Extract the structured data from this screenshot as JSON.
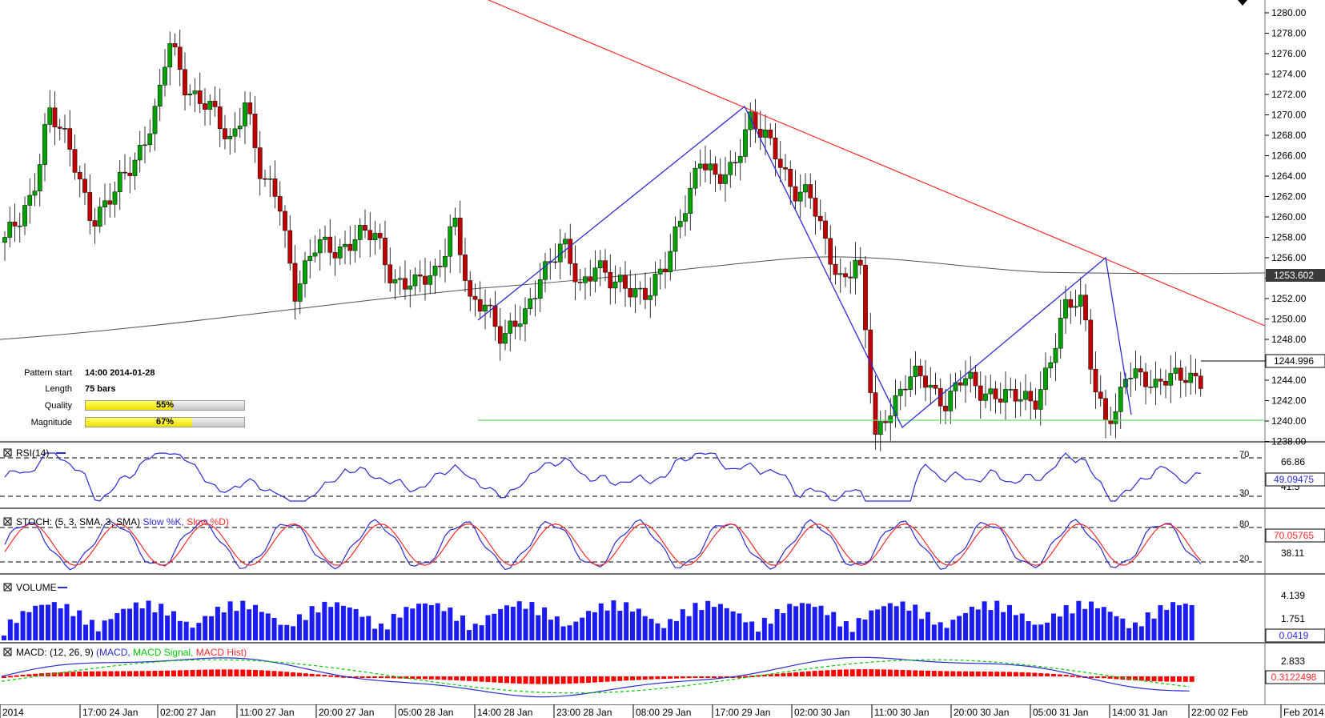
{
  "price_axis": {
    "labels": [
      "1280.00",
      "1278.00",
      "1276.00",
      "1274.00",
      "1272.00",
      "1270.00",
      "1268.00",
      "1266.00",
      "1264.00",
      "1262.00",
      "1260.00",
      "1258.00",
      "1256.00",
      "1254.00",
      "1252.00",
      "1250.00",
      "1248.00",
      "1246.00",
      "1244.00",
      "1242.00",
      "1240.00",
      "1238.00"
    ],
    "current_price": "1244.996",
    "ma_value": "1253.602"
  },
  "time_axis": {
    "labels": [
      "2014",
      "17:00 24 Jan",
      "02:00 27 Jan",
      "11:00 27 Jan",
      "20:00 27 Jan",
      "05:00 28 Jan",
      "14:00 28 Jan",
      "23:00 28 Jan",
      "08:00 29 Jan",
      "17:00 29 Jan",
      "02:00 30 Jan",
      "11:00 30 Jan",
      "20:00 30 Jan",
      "05:00 31 Jan",
      "14:00 31 Jan",
      "22:00 02 Feb",
      "Feb 2014"
    ]
  },
  "pattern_info": {
    "start_label": "Pattern start",
    "start_value": "14:00 2014-01-28",
    "length_label": "Length",
    "length_value": "75 bars",
    "quality_label": "Quality",
    "quality_value": "55%",
    "quality_fraction": 0.55,
    "magnitude_label": "Magnitude",
    "magnitude_value": "67%",
    "magnitude_fraction": 0.67
  },
  "rsi": {
    "title_prefix": "RSI(14)",
    "levels": [
      "70",
      "30"
    ],
    "scale_label": "66.86",
    "value": "49.09475",
    "lower_label": "41.5"
  },
  "stoch": {
    "title_prefix": "STOCH: (5, 3, SMA, 3, SMA)",
    "k_label": "Slow %K,",
    "d_label": "Slow %D)",
    "levels": [
      "80",
      "20"
    ],
    "scale_label": "38.11",
    "value": "70.05765"
  },
  "volume": {
    "title": "VOLUME",
    "scale_top": "4.139",
    "scale_mid": "1.751",
    "value": "0.0419"
  },
  "macd": {
    "title_prefix": "MACD: (12, 26, 9)",
    "macd_label": "(MACD,",
    "signal_label": "MACD Signal,",
    "hist_label": "MACD Hist)",
    "scale_top": "2.833",
    "value": "0.3122498"
  },
  "colors": {
    "bull": "#00a000",
    "bear": "#c00000",
    "trendline": "#ff2a2a",
    "zigzag": "#2b2bd6",
    "support": "#66dd66",
    "ma": "#505050",
    "volume": "#1c1cf0",
    "macd_hist": "#ff0000",
    "macd_signal": "#00cc00",
    "stoch_k": "#2b2bd6",
    "stoch_d": "#ff2a2a"
  }
}
